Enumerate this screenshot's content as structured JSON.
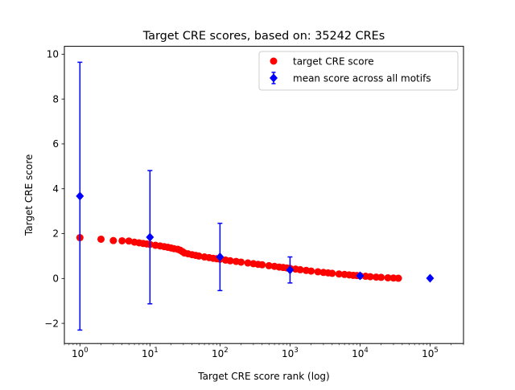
{
  "chart_data": {
    "type": "scatter",
    "title": "Target CRE scores, based on: 35242 CREs",
    "xlabel": "Target CRE score rank (log)",
    "ylabel": "Target CRE score",
    "xscale": "log",
    "xlim": [
      0.6,
      300000
    ],
    "ylim": [
      -2.9,
      10.35
    ],
    "grid": false,
    "legend_placement": "top-right",
    "x_ticks": [
      {
        "value": 1,
        "base": "10",
        "exp": "0"
      },
      {
        "value": 10,
        "base": "10",
        "exp": "1"
      },
      {
        "value": 100,
        "base": "10",
        "exp": "2"
      },
      {
        "value": 1000,
        "base": "10",
        "exp": "3"
      },
      {
        "value": 10000,
        "base": "10",
        "exp": "4"
      },
      {
        "value": 100000,
        "base": "10",
        "exp": "5"
      }
    ],
    "y_ticks": [
      {
        "value": -2,
        "label": "−2"
      },
      {
        "value": 0,
        "label": "0"
      },
      {
        "value": 2,
        "label": "2"
      },
      {
        "value": 4,
        "label": "4"
      },
      {
        "value": 6,
        "label": "6"
      },
      {
        "value": 8,
        "label": "8"
      },
      {
        "value": 10,
        "label": "10"
      }
    ],
    "series": [
      {
        "name": "target CRE score",
        "kind": "scatter",
        "color": "#ff0000",
        "marker": "circle",
        "points": [
          [
            1,
            1.82
          ],
          [
            2,
            1.75
          ],
          [
            3,
            1.69
          ],
          [
            4,
            1.68
          ],
          [
            5,
            1.67
          ],
          [
            6,
            1.62
          ],
          [
            7,
            1.59
          ],
          [
            8,
            1.56
          ],
          [
            9,
            1.54
          ],
          [
            10,
            1.52
          ],
          [
            12,
            1.48
          ],
          [
            14,
            1.45
          ],
          [
            16,
            1.42
          ],
          [
            18,
            1.39
          ],
          [
            20,
            1.36
          ],
          [
            22,
            1.33
          ],
          [
            25,
            1.3
          ],
          [
            27,
            1.26
          ],
          [
            29,
            1.2
          ],
          [
            31,
            1.14
          ],
          [
            35,
            1.1
          ],
          [
            40,
            1.06
          ],
          [
            45,
            1.03
          ],
          [
            50,
            1.0
          ],
          [
            60,
            0.96
          ],
          [
            70,
            0.93
          ],
          [
            80,
            0.9
          ],
          [
            90,
            0.88
          ],
          [
            100,
            0.86
          ],
          [
            120,
            0.82
          ],
          [
            140,
            0.79
          ],
          [
            170,
            0.76
          ],
          [
            200,
            0.73
          ],
          [
            250,
            0.69
          ],
          [
            300,
            0.66
          ],
          [
            350,
            0.63
          ],
          [
            400,
            0.61
          ],
          [
            500,
            0.57
          ],
          [
            600,
            0.54
          ],
          [
            700,
            0.51
          ],
          [
            800,
            0.49
          ],
          [
            900,
            0.47
          ],
          [
            1000,
            0.45
          ],
          [
            1200,
            0.42
          ],
          [
            1400,
            0.39
          ],
          [
            1700,
            0.36
          ],
          [
            2000,
            0.33
          ],
          [
            2500,
            0.3
          ],
          [
            3000,
            0.27
          ],
          [
            3500,
            0.25
          ],
          [
            4000,
            0.23
          ],
          [
            5000,
            0.2
          ],
          [
            6000,
            0.18
          ],
          [
            7000,
            0.16
          ],
          [
            8000,
            0.14
          ],
          [
            9000,
            0.13
          ],
          [
            10000,
            0.12
          ],
          [
            12000,
            0.1
          ],
          [
            14000,
            0.08
          ],
          [
            17000,
            0.06
          ],
          [
            20000,
            0.05
          ],
          [
            25000,
            0.03
          ],
          [
            30000,
            0.02
          ],
          [
            35242,
            0.01
          ]
        ]
      },
      {
        "name": "mean score across all motifs",
        "kind": "errorbar",
        "color": "#0000ff",
        "marker": "diamond",
        "points": [
          {
            "x": 1,
            "y": 3.67,
            "err": 5.97
          },
          {
            "x": 10,
            "y": 1.84,
            "err": 2.97
          },
          {
            "x": 100,
            "y": 0.96,
            "err": 1.5
          },
          {
            "x": 1000,
            "y": 0.38,
            "err": 0.58
          },
          {
            "x": 10000,
            "y": 0.12,
            "err": 0
          },
          {
            "x": 100000,
            "y": 0.01,
            "err": 0
          }
        ]
      }
    ]
  }
}
